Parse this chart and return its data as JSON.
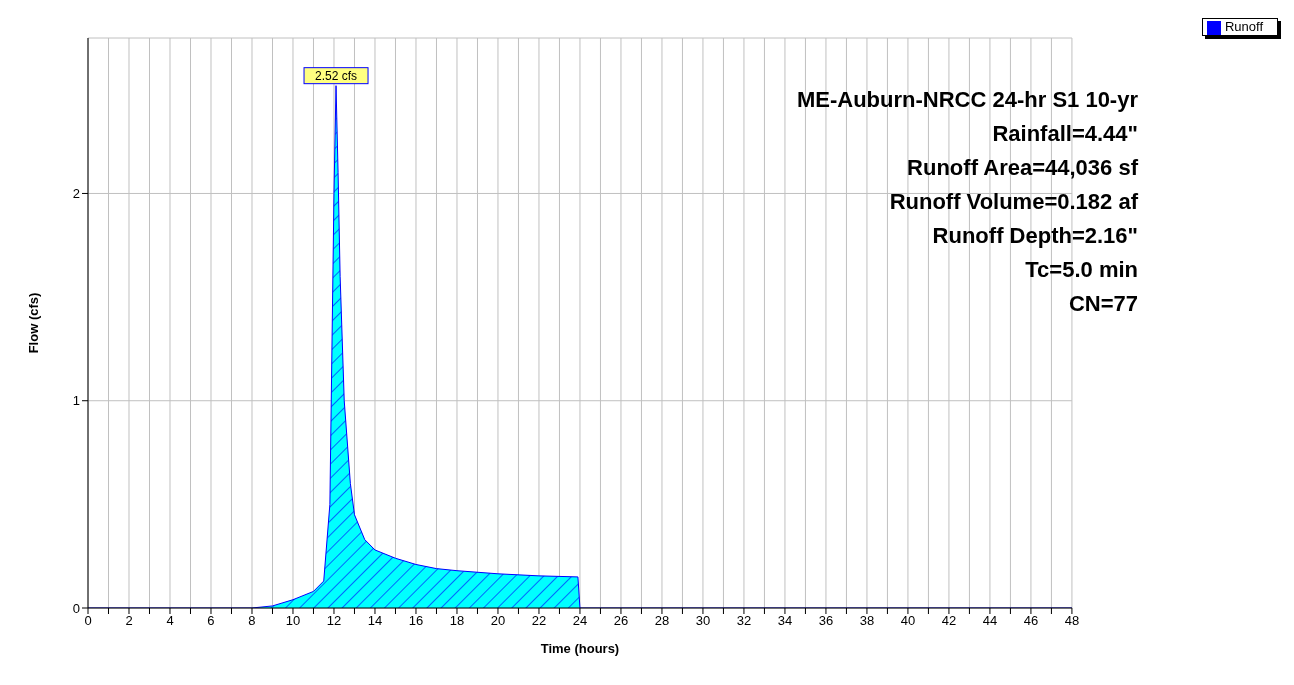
{
  "chart_data": {
    "type": "area",
    "xlabel": "Time  (hours)",
    "ylabel": "Flow  (cfs)",
    "x": [
      0,
      6,
      8,
      9,
      10,
      11,
      11.5,
      11.8,
      12,
      12.1,
      12.2,
      12.3,
      12.5,
      12.8,
      13,
      13.5,
      14,
      15,
      16,
      17,
      18,
      20,
      22,
      23.9,
      24,
      30,
      48
    ],
    "series": [
      {
        "name": "Runoff",
        "color": "#00ffff",
        "values": [
          0,
          0,
          0,
          0.01,
          0.04,
          0.08,
          0.13,
          0.5,
          2.0,
          2.52,
          2.1,
          1.6,
          1.0,
          0.6,
          0.45,
          0.33,
          0.28,
          0.24,
          0.21,
          0.19,
          0.18,
          0.165,
          0.155,
          0.15,
          0,
          0,
          0
        ]
      }
    ],
    "xlim": [
      0,
      48
    ],
    "xticks": [
      0,
      {
        "value": 1,
        "label": null
      },
      2,
      {
        "value": 3,
        "label": null
      },
      4,
      {
        "value": 5,
        "label": null
      },
      6,
      {
        "value": 7,
        "label": null
      },
      8,
      {
        "value": 9,
        "label": null
      },
      10,
      {
        "value": 11,
        "label": null
      },
      12,
      {
        "value": 13,
        "label": null
      },
      14,
      {
        "value": 15,
        "label": null
      },
      16,
      {
        "value": 17,
        "label": null
      },
      18,
      {
        "value": 19,
        "label": null
      },
      20,
      {
        "value": 21,
        "label": null
      },
      22,
      {
        "value": 23,
        "label": null
      },
      24,
      {
        "value": 25,
        "label": null
      },
      26,
      {
        "value": 27,
        "label": null
      },
      28,
      {
        "value": 29,
        "label": null
      },
      30,
      {
        "value": 31,
        "label": null
      },
      32,
      {
        "value": 33,
        "label": null
      },
      34,
      {
        "value": 35,
        "label": null
      },
      36,
      {
        "value": 37,
        "label": null
      },
      38,
      {
        "value": 39,
        "label": null
      },
      40,
      {
        "value": 41,
        "label": null
      },
      42,
      {
        "value": 43,
        "label": null
      },
      44,
      {
        "value": 45,
        "label": null
      },
      46,
      {
        "value": 47,
        "label": null
      },
      48
    ],
    "ylim": [
      0,
      2.75
    ],
    "yticks": [
      0,
      1,
      2
    ],
    "grid": true,
    "legend": "top right",
    "annotations": [
      {
        "text": "2.52 cfs",
        "x": 12.1,
        "y": 2.52
      },
      "ME-Auburn-NRCC 24-hr S1 10-yr",
      "Rainfall=4.44\"",
      "Runoff Area=44,036 sf",
      "Runoff Volume=0.182 af",
      "Runoff Depth=2.16\"",
      "Tc=5.0 min",
      "CN=77"
    ]
  }
}
